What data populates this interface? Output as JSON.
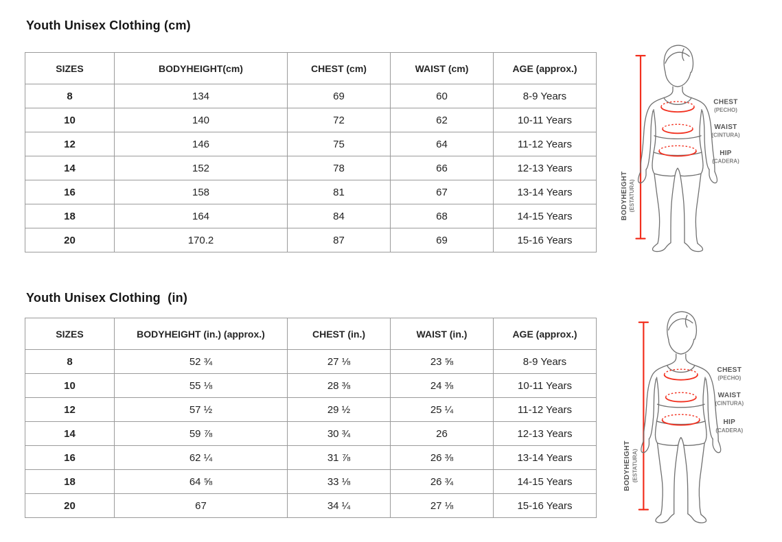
{
  "colors": {
    "accent_red": "#f2301f",
    "table_border": "#9a9a9a",
    "text": "#1f1f1f",
    "figure_outline": "#707070",
    "figure_label": "#555555",
    "figure_sublabel": "#808080"
  },
  "sections": [
    {
      "title": "Youth Unisex Clothing (cm)",
      "table": {
        "headers": [
          "SIZES",
          "BODYHEIGHT(cm)",
          "CHEST (cm)",
          "WAIST (cm)",
          "AGE (approx.)"
        ],
        "rows": [
          [
            "8",
            "134",
            "69",
            "60",
            "8-9 Years"
          ],
          [
            "10",
            "140",
            "72",
            "62",
            "10-11 Years"
          ],
          [
            "12",
            "146",
            "75",
            "64",
            "11-12 Years"
          ],
          [
            "14",
            "152",
            "78",
            "66",
            "12-13 Years"
          ],
          [
            "16",
            "158",
            "81",
            "67",
            "13-14 Years"
          ],
          [
            "18",
            "164",
            "84",
            "68",
            "14-15 Years"
          ],
          [
            "20",
            "170.2",
            "87",
            "69",
            "15-16 Years"
          ]
        ]
      }
    },
    {
      "title": "Youth Unisex Clothing  (in)",
      "table": {
        "headers": [
          "SIZES",
          "BODYHEIGHT (in.) (approx.)",
          "CHEST (in.)",
          "WAIST (in.)",
          "AGE (approx.)"
        ],
        "rows": [
          [
            "8",
            "52 ¾",
            "27 ⅛",
            "23 ⅝",
            "8-9 Years"
          ],
          [
            "10",
            "55 ⅛",
            "28 ⅜",
            "24 ⅜",
            "10-11 Years"
          ],
          [
            "12",
            "57 ½",
            "29 ½",
            "25 ¼",
            "11-12 Years"
          ],
          [
            "14",
            "59 ⅞",
            "30 ¾",
            "26",
            "12-13 Years"
          ],
          [
            "16",
            "62 ¼",
            "31 ⅞",
            "26 ⅜",
            "13-14 Years"
          ],
          [
            "18",
            "64 ⅝",
            "33 ⅛",
            "26 ¾",
            "14-15 Years"
          ],
          [
            "20",
            "67",
            "34 ¼",
            "27 ⅛",
            "15-16 Years"
          ]
        ]
      }
    }
  ],
  "figure": {
    "chest": "CHEST",
    "chest_sub": "(PECHO)",
    "waist": "WAIST",
    "waist_sub": "(CINTURA)",
    "hip": "HIP",
    "hip_sub": "(CADERA)",
    "bodyheight": "BODYHEIGHT",
    "bodyheight_sub": "(ESTATURA)"
  }
}
